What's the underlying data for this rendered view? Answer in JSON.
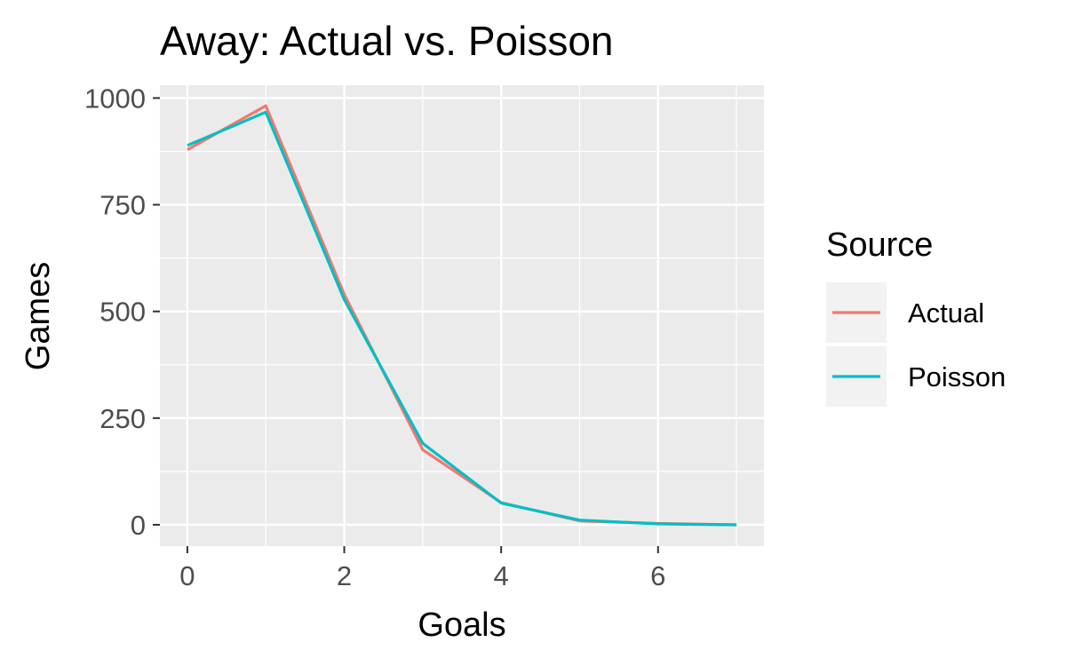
{
  "chart_data": {
    "type": "line",
    "title": "Away: Actual vs. Poisson",
    "xlabel": "Goals",
    "ylabel": "Games",
    "xlim": [
      -0.35,
      7.35
    ],
    "ylim": [
      -50,
      1030
    ],
    "x_ticks": [
      0,
      2,
      4,
      6
    ],
    "y_ticks": [
      0,
      250,
      500,
      750,
      1000
    ],
    "x_tick_labels": [
      "0",
      "2",
      "4",
      "6"
    ],
    "y_tick_labels": [
      "0",
      "250",
      "500",
      "750",
      "1000"
    ],
    "grid": true,
    "x": [
      0,
      1,
      2,
      3,
      4,
      5,
      6,
      7
    ],
    "series": [
      {
        "name": "Actual",
        "color": "#F8766D",
        "values": [
          879,
          982,
          540,
          176,
          52,
          9,
          3,
          0
        ]
      },
      {
        "name": "Poisson",
        "color": "#00BFC4",
        "values": [
          889,
          967,
          528,
          191,
          51,
          11,
          2,
          0
        ]
      }
    ],
    "legend": {
      "title": "Source",
      "position": "right"
    }
  }
}
